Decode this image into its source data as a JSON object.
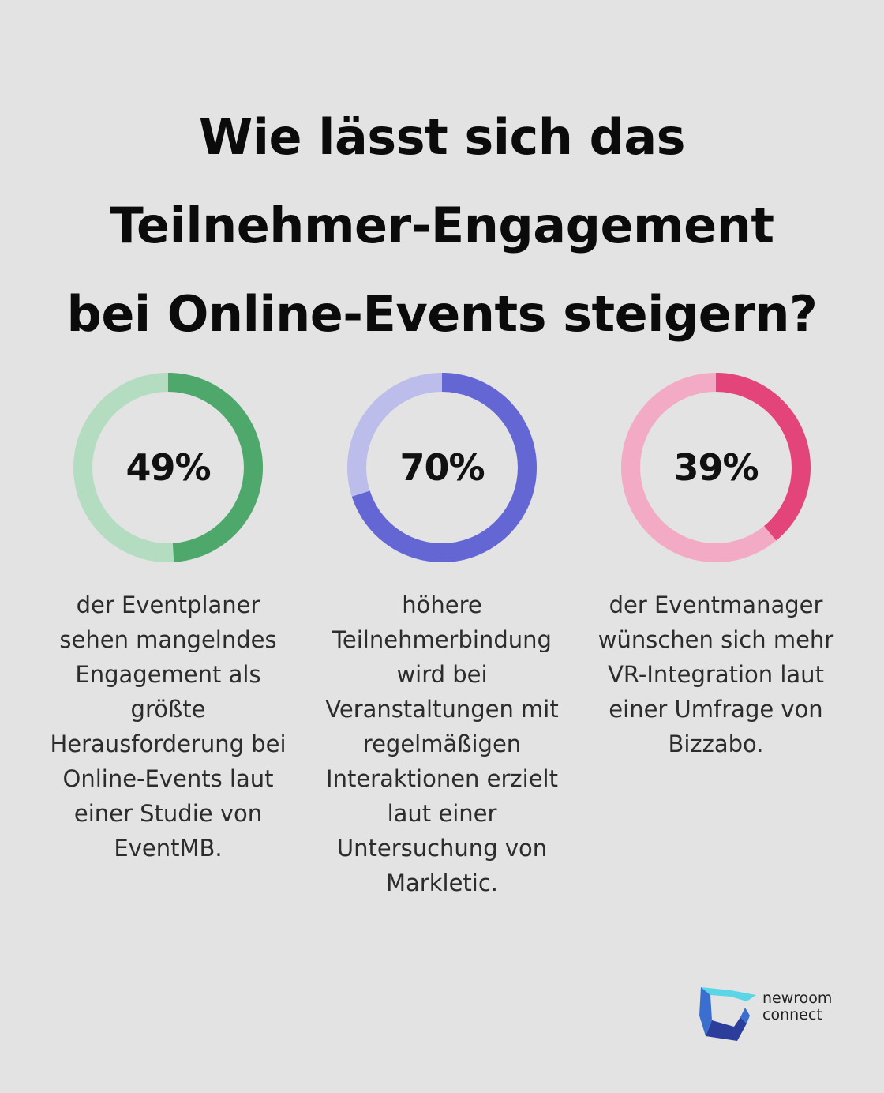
{
  "title": {
    "line1": "Wie lässt sich das",
    "line2": "Teilnehmer-Engagement",
    "line3": "bei Online-Events steigern?"
  },
  "stats": [
    {
      "value": 49,
      "label": "49%",
      "description": "der Eventplaner sehen mangelndes Engagement als größte Herausforderung bei Online-Events laut einer Studie von EventMB.",
      "color_fill": "#4ea86c",
      "color_track": "#b3dcc0"
    },
    {
      "value": 70,
      "label": "70%",
      "description": "höhere Teilnehmerbindung wird bei Veranstaltungen mit regelmäßigen Interaktionen erzielt laut einer Untersuchung von Markletic.",
      "color_fill": "#6466d4",
      "color_track": "#bcbdeb"
    },
    {
      "value": 39,
      "label": "39%",
      "description": "der Eventmanager wünschen sich mehr VR-Integration laut einer Umfrage von Bizzabo.",
      "color_fill": "#e3457a",
      "color_track": "#f3aac4"
    }
  ],
  "logo": {
    "line1": "newroom",
    "line2": "connect",
    "colors": [
      "#5ad6e6",
      "#3a6fd0",
      "#2c3e9c"
    ]
  }
}
